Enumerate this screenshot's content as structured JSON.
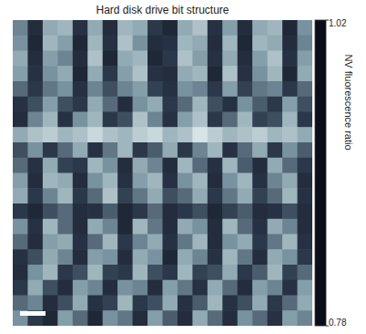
{
  "chart_data": {
    "type": "heatmap",
    "title": "Hard disk drive bit structure",
    "tick_labels": false,
    "cells": [
      [
        0.92,
        0.84,
        0.95,
        0.96,
        0.85,
        0.95,
        0.84,
        0.96,
        0.95,
        0.86,
        0.83,
        0.95,
        0.97,
        0.85,
        0.94,
        0.84,
        0.95,
        0.96,
        0.83,
        0.93
      ],
      [
        0.93,
        0.83,
        0.96,
        0.94,
        0.83,
        0.96,
        0.85,
        0.97,
        0.93,
        0.84,
        0.85,
        0.96,
        0.95,
        0.84,
        0.96,
        0.83,
        0.96,
        0.95,
        0.84,
        0.92
      ],
      [
        0.95,
        0.84,
        0.94,
        0.92,
        0.84,
        0.97,
        0.83,
        0.95,
        0.96,
        0.83,
        0.86,
        0.97,
        0.94,
        0.85,
        0.95,
        0.84,
        0.94,
        0.97,
        0.85,
        0.94
      ],
      [
        0.94,
        0.85,
        0.93,
        0.95,
        0.83,
        0.95,
        0.86,
        0.94,
        0.97,
        0.85,
        0.84,
        0.95,
        0.96,
        0.83,
        0.97,
        0.85,
        0.93,
        0.96,
        0.83,
        0.95
      ],
      [
        0.9,
        0.86,
        0.91,
        0.93,
        0.85,
        0.92,
        0.88,
        0.92,
        0.94,
        0.87,
        0.85,
        0.93,
        0.92,
        0.86,
        0.94,
        0.87,
        0.91,
        0.92,
        0.86,
        0.9
      ],
      [
        0.85,
        0.88,
        0.94,
        0.88,
        0.86,
        0.95,
        0.9,
        0.84,
        0.93,
        0.95,
        0.86,
        0.9,
        0.96,
        0.88,
        0.85,
        0.93,
        0.89,
        0.86,
        0.94,
        0.88
      ],
      [
        0.84,
        0.92,
        0.96,
        0.85,
        0.93,
        0.96,
        0.86,
        0.88,
        0.97,
        0.92,
        0.85,
        0.94,
        0.97,
        0.86,
        0.9,
        0.96,
        0.87,
        0.88,
        0.96,
        0.86
      ],
      [
        0.95,
        0.97,
        0.98,
        0.96,
        0.97,
        0.99,
        0.97,
        0.96,
        0.98,
        0.99,
        0.96,
        0.97,
        1.0,
        0.98,
        0.96,
        0.97,
        0.98,
        0.96,
        0.97,
        0.95
      ],
      [
        0.88,
        0.93,
        0.86,
        0.9,
        0.95,
        0.85,
        0.91,
        0.96,
        0.86,
        0.89,
        0.95,
        0.86,
        0.92,
        0.96,
        0.85,
        0.9,
        0.95,
        0.86,
        0.93,
        0.89
      ],
      [
        0.9,
        0.85,
        0.95,
        0.87,
        0.86,
        0.96,
        0.93,
        0.84,
        0.95,
        0.92,
        0.84,
        0.96,
        0.9,
        0.85,
        0.96,
        0.89,
        0.84,
        0.95,
        0.9,
        0.86
      ],
      [
        0.94,
        0.84,
        0.96,
        0.95,
        0.84,
        0.93,
        0.96,
        0.85,
        0.94,
        0.96,
        0.85,
        0.93,
        0.96,
        0.84,
        0.93,
        0.96,
        0.85,
        0.92,
        0.95,
        0.84
      ],
      [
        0.95,
        0.86,
        0.92,
        0.96,
        0.86,
        0.9,
        0.97,
        0.87,
        0.91,
        0.95,
        0.88,
        0.9,
        0.95,
        0.86,
        0.91,
        0.95,
        0.87,
        0.9,
        0.96,
        0.85
      ],
      [
        0.86,
        0.83,
        0.88,
        0.9,
        0.84,
        0.85,
        0.89,
        0.83,
        0.86,
        0.9,
        0.84,
        0.86,
        0.88,
        0.83,
        0.87,
        0.89,
        0.84,
        0.85,
        0.88,
        0.84
      ],
      [
        0.93,
        0.85,
        0.96,
        0.9,
        0.84,
        0.95,
        0.92,
        0.83,
        0.96,
        0.91,
        0.84,
        0.95,
        0.93,
        0.84,
        0.96,
        0.9,
        0.85,
        0.95,
        0.92,
        0.84
      ],
      [
        0.9,
        0.84,
        0.94,
        0.95,
        0.85,
        0.9,
        0.96,
        0.86,
        0.92,
        0.95,
        0.85,
        0.91,
        0.96,
        0.84,
        0.93,
        0.95,
        0.86,
        0.91,
        0.96,
        0.85
      ],
      [
        0.85,
        0.88,
        0.95,
        0.92,
        0.84,
        0.94,
        0.93,
        0.84,
        0.95,
        0.93,
        0.83,
        0.95,
        0.92,
        0.85,
        0.96,
        0.91,
        0.84,
        0.95,
        0.93,
        0.86
      ],
      [
        0.84,
        0.93,
        0.96,
        0.86,
        0.88,
        0.96,
        0.87,
        0.86,
        0.96,
        0.88,
        0.86,
        0.96,
        0.87,
        0.88,
        0.95,
        0.86,
        0.89,
        0.96,
        0.87,
        0.9
      ],
      [
        0.86,
        0.95,
        0.88,
        0.84,
        0.94,
        0.92,
        0.84,
        0.93,
        0.92,
        0.84,
        0.94,
        0.91,
        0.85,
        0.95,
        0.9,
        0.84,
        0.94,
        0.92,
        0.85,
        0.94
      ],
      [
        0.9,
        0.92,
        0.84,
        0.88,
        0.95,
        0.85,
        0.87,
        0.96,
        0.86,
        0.88,
        0.95,
        0.85,
        0.89,
        0.96,
        0.85,
        0.88,
        0.95,
        0.86,
        0.9,
        0.95
      ],
      [
        0.93,
        0.86,
        0.83,
        0.94,
        0.9,
        0.83,
        0.93,
        0.91,
        0.84,
        0.94,
        0.89,
        0.84,
        0.95,
        0.9,
        0.84,
        0.93,
        0.9,
        0.85,
        0.94,
        0.92
      ]
    ],
    "colorbar": {
      "label": "NV fluorescence ratio",
      "range": [
        0.78,
        1.02
      ],
      "ticks": [
        0.78,
        1.02
      ]
    }
  }
}
